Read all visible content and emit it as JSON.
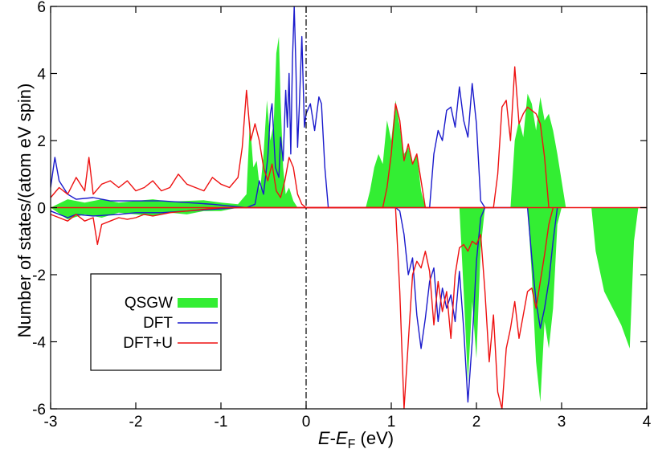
{
  "chart_data": {
    "type": "area",
    "title": "",
    "xlabel": {
      "main": "E",
      "sep": "-",
      "sym": "E",
      "sub": "F",
      "unit": " (eV)"
    },
    "ylabel": "Number of states/(atom eV spin)",
    "xlim": [
      -3,
      4
    ],
    "ylim": [
      -6,
      6
    ],
    "xticks": [
      -3,
      -2,
      -1,
      0,
      1,
      2,
      3,
      4
    ],
    "yticks": [
      -6,
      -4,
      -2,
      0,
      2,
      4,
      6
    ],
    "fermi_level": 0,
    "grid": false,
    "legend_position": "bottom-left",
    "series": [
      {
        "name": "QSGW",
        "style": "filled",
        "color": "#33ee33",
        "up": [
          [
            -3,
            0
          ],
          [
            -2.8,
            0.25
          ],
          [
            -2.6,
            0.15
          ],
          [
            -2.4,
            0.25
          ],
          [
            -2.2,
            0.15
          ],
          [
            -2,
            0.2
          ],
          [
            -1.8,
            0.25
          ],
          [
            -1.6,
            0.18
          ],
          [
            -1.4,
            0.2
          ],
          [
            -1.2,
            0.22
          ],
          [
            -1.0,
            0.15
          ],
          [
            -0.8,
            0.1
          ],
          [
            -0.7,
            0.4
          ],
          [
            -0.66,
            2.6
          ],
          [
            -0.62,
            1.2
          ],
          [
            -0.58,
            1.4
          ],
          [
            -0.54,
            0.5
          ],
          [
            -0.5,
            1.6
          ],
          [
            -0.46,
            3.2
          ],
          [
            -0.42,
            2.0
          ],
          [
            -0.38,
            2.5
          ],
          [
            -0.35,
            4.6
          ],
          [
            -0.32,
            5.1
          ],
          [
            -0.3,
            3.2
          ],
          [
            -0.27,
            1.2
          ],
          [
            -0.24,
            0.4
          ],
          [
            -0.2,
            0.6
          ],
          [
            -0.15,
            0.2
          ],
          [
            -0.1,
            0
          ],
          [
            0.7,
            0
          ],
          [
            0.75,
            0.5
          ],
          [
            0.8,
            1.2
          ],
          [
            0.85,
            1.6
          ],
          [
            0.9,
            1.3
          ],
          [
            0.95,
            2.6
          ],
          [
            1.0,
            2.0
          ],
          [
            1.05,
            3.2
          ],
          [
            1.1,
            2.4
          ],
          [
            1.15,
            1.6
          ],
          [
            1.2,
            1.8
          ],
          [
            1.25,
            1.3
          ],
          [
            1.3,
            1.6
          ],
          [
            1.35,
            0.5
          ],
          [
            1.4,
            0
          ],
          [
            2.4,
            0
          ],
          [
            2.45,
            2.0
          ],
          [
            2.5,
            2.6
          ],
          [
            2.55,
            2.1
          ],
          [
            2.6,
            3.4
          ],
          [
            2.65,
            3.1
          ],
          [
            2.7,
            2.3
          ],
          [
            2.75,
            3.3
          ],
          [
            2.8,
            2.6
          ],
          [
            2.85,
            2.8
          ],
          [
            2.9,
            2.3
          ],
          [
            2.95,
            1.6
          ],
          [
            3.0,
            0.8
          ],
          [
            3.05,
            0
          ]
        ],
        "down": [
          [
            -3,
            0
          ],
          [
            -2.8,
            -0.35
          ],
          [
            -2.6,
            -0.2
          ],
          [
            -2.4,
            -0.3
          ],
          [
            -2.2,
            -0.15
          ],
          [
            -2,
            -0.2
          ],
          [
            -1.8,
            -0.25
          ],
          [
            -1.6,
            -0.15
          ],
          [
            -1.4,
            -0.2
          ],
          [
            -1.2,
            -0.1
          ],
          [
            -1.0,
            -0.1
          ],
          [
            -0.8,
            0
          ],
          [
            1.8,
            0
          ],
          [
            1.85,
            -2.5
          ],
          [
            1.9,
            -5.2
          ],
          [
            1.95,
            -2.8
          ],
          [
            2.0,
            -4.5
          ],
          [
            2.05,
            -1.2
          ],
          [
            2.1,
            0
          ],
          [
            2.6,
            0
          ],
          [
            2.65,
            -2.0
          ],
          [
            2.7,
            -4.6
          ],
          [
            2.75,
            -5.8
          ],
          [
            2.8,
            -3.4
          ],
          [
            2.85,
            -4.2
          ],
          [
            2.9,
            -3.0
          ],
          [
            2.95,
            -0.5
          ],
          [
            3.0,
            0
          ],
          [
            3.35,
            0
          ],
          [
            3.4,
            -1.3
          ],
          [
            3.5,
            -2.5
          ],
          [
            3.6,
            -3.0
          ],
          [
            3.7,
            -3.5
          ],
          [
            3.8,
            -4.2
          ],
          [
            3.85,
            -1.0
          ],
          [
            3.9,
            0
          ]
        ]
      },
      {
        "name": "DFT",
        "style": "line",
        "color": "#1a1acc",
        "up": [
          [
            -3,
            0.6
          ],
          [
            -2.95,
            1.5
          ],
          [
            -2.9,
            0.8
          ],
          [
            -2.8,
            0.4
          ],
          [
            -2.7,
            0.25
          ],
          [
            -2.5,
            0.3
          ],
          [
            -2.3,
            0.2
          ],
          [
            -2,
            0.2
          ],
          [
            -1.7,
            0.2
          ],
          [
            -1.4,
            0.15
          ],
          [
            -1.1,
            0.1
          ],
          [
            -0.9,
            0.05
          ],
          [
            -0.7,
            0
          ],
          [
            -0.6,
            0.1
          ],
          [
            -0.55,
            0.8
          ],
          [
            -0.5,
            0.4
          ],
          [
            -0.45,
            1.5
          ],
          [
            -0.42,
            2.8
          ],
          [
            -0.4,
            3.1
          ],
          [
            -0.36,
            1.2
          ],
          [
            -0.32,
            0.9
          ],
          [
            -0.3,
            2.1
          ],
          [
            -0.27,
            1.4
          ],
          [
            -0.24,
            3.5
          ],
          [
            -0.22,
            2.4
          ],
          [
            -0.2,
            4.0
          ],
          [
            -0.18,
            1.6
          ],
          [
            -0.16,
            4.4
          ],
          [
            -0.14,
            6.0
          ],
          [
            -0.12,
            4.2
          ],
          [
            -0.1,
            1.8
          ],
          [
            -0.08,
            3.0
          ],
          [
            -0.05,
            5.1
          ],
          [
            -0.02,
            2.4
          ],
          [
            0,
            2.8
          ],
          [
            0.05,
            3.1
          ],
          [
            0.1,
            2.3
          ],
          [
            0.15,
            3.3
          ],
          [
            0.18,
            3.1
          ],
          [
            0.22,
            1.2
          ],
          [
            0.26,
            0
          ],
          [
            1.45,
            0
          ],
          [
            1.5,
            1.6
          ],
          [
            1.55,
            2.3
          ],
          [
            1.6,
            2.0
          ],
          [
            1.65,
            2.9
          ],
          [
            1.7,
            3.0
          ],
          [
            1.75,
            2.4
          ],
          [
            1.8,
            3.6
          ],
          [
            1.85,
            2.6
          ],
          [
            1.9,
            2.1
          ],
          [
            1.95,
            3.7
          ],
          [
            2.0,
            2.5
          ],
          [
            2.05,
            0.2
          ],
          [
            2.1,
            0
          ]
        ],
        "down": [
          [
            -3,
            -0.1
          ],
          [
            -2.9,
            -0.2
          ],
          [
            -2.8,
            -0.3
          ],
          [
            -2.7,
            -0.2
          ],
          [
            -2.5,
            -0.25
          ],
          [
            -2.2,
            -0.2
          ],
          [
            -2,
            -0.15
          ],
          [
            -1.7,
            -0.15
          ],
          [
            -1.4,
            -0.1
          ],
          [
            -1.1,
            -0.05
          ],
          [
            -0.8,
            0
          ],
          [
            1.05,
            0
          ],
          [
            1.1,
            -0.1
          ],
          [
            1.15,
            -0.8
          ],
          [
            1.2,
            -2.0
          ],
          [
            1.25,
            -1.5
          ],
          [
            1.3,
            -3.2
          ],
          [
            1.35,
            -4.2
          ],
          [
            1.4,
            -3.3
          ],
          [
            1.45,
            -2.2
          ],
          [
            1.5,
            -1.8
          ],
          [
            1.55,
            -3.4
          ],
          [
            1.6,
            -2.4
          ],
          [
            1.65,
            -3.0
          ],
          [
            1.7,
            -2.6
          ],
          [
            1.75,
            -3.4
          ],
          [
            1.8,
            -1.9
          ],
          [
            1.85,
            -3.6
          ],
          [
            1.9,
            -5.8
          ],
          [
            1.95,
            -4.0
          ],
          [
            2.0,
            -1.6
          ],
          [
            2.05,
            -0.3
          ],
          [
            2.1,
            0
          ],
          [
            2.6,
            0
          ],
          [
            2.65,
            -1.5
          ],
          [
            2.7,
            -2.8
          ],
          [
            2.75,
            -3.6
          ],
          [
            2.8,
            -3.0
          ],
          [
            2.85,
            -2.2
          ],
          [
            2.9,
            -1.0
          ],
          [
            2.95,
            0
          ]
        ]
      },
      {
        "name": "DFT+U",
        "style": "line",
        "color": "#ee1111",
        "up": [
          [
            -3,
            0.3
          ],
          [
            -2.9,
            0.6
          ],
          [
            -2.8,
            0.4
          ],
          [
            -2.7,
            0.9
          ],
          [
            -2.6,
            0.5
          ],
          [
            -2.55,
            1.5
          ],
          [
            -2.5,
            0.4
          ],
          [
            -2.4,
            0.7
          ],
          [
            -2.3,
            0.8
          ],
          [
            -2.2,
            0.6
          ],
          [
            -2.1,
            0.8
          ],
          [
            -2,
            0.5
          ],
          [
            -1.9,
            0.6
          ],
          [
            -1.8,
            0.8
          ],
          [
            -1.7,
            0.5
          ],
          [
            -1.6,
            0.6
          ],
          [
            -1.5,
            1.0
          ],
          [
            -1.4,
            0.7
          ],
          [
            -1.3,
            0.6
          ],
          [
            -1.2,
            0.5
          ],
          [
            -1.1,
            0.9
          ],
          [
            -1,
            0.7
          ],
          [
            -0.9,
            0.6
          ],
          [
            -0.8,
            0.9
          ],
          [
            -0.75,
            1.8
          ],
          [
            -0.7,
            3.5
          ],
          [
            -0.65,
            2.0
          ],
          [
            -0.6,
            2.5
          ],
          [
            -0.55,
            2.0
          ],
          [
            -0.5,
            1.2
          ],
          [
            -0.45,
            0.8
          ],
          [
            -0.4,
            1.3
          ],
          [
            -0.35,
            0.5
          ],
          [
            -0.3,
            0.3
          ],
          [
            -0.25,
            0.8
          ],
          [
            -0.2,
            1.5
          ],
          [
            -0.15,
            1.2
          ],
          [
            -0.1,
            0.4
          ],
          [
            -0.05,
            0.1
          ],
          [
            0,
            0
          ],
          [
            0.9,
            0
          ],
          [
            0.95,
            0.6
          ],
          [
            1.0,
            1.6
          ],
          [
            1.05,
            3.1
          ],
          [
            1.1,
            2.6
          ],
          [
            1.15,
            1.4
          ],
          [
            1.2,
            1.9
          ],
          [
            1.25,
            1.3
          ],
          [
            1.3,
            1.6
          ],
          [
            1.35,
            0.8
          ],
          [
            1.4,
            0
          ],
          [
            2.2,
            0
          ],
          [
            2.25,
            1.0
          ],
          [
            2.3,
            3.0
          ],
          [
            2.35,
            3.2
          ],
          [
            2.4,
            2.0
          ],
          [
            2.45,
            4.2
          ],
          [
            2.5,
            2.5
          ],
          [
            2.55,
            2.8
          ],
          [
            2.6,
            3.0
          ],
          [
            2.65,
            2.9
          ],
          [
            2.7,
            2.8
          ],
          [
            2.75,
            2.5
          ],
          [
            2.8,
            1.5
          ],
          [
            2.85,
            0
          ]
        ],
        "down": [
          [
            -3,
            -0.2
          ],
          [
            -2.9,
            -0.3
          ],
          [
            -2.8,
            -0.4
          ],
          [
            -2.7,
            -0.2
          ],
          [
            -2.6,
            -0.4
          ],
          [
            -2.5,
            -0.3
          ],
          [
            -2.45,
            -1.1
          ],
          [
            -2.4,
            -0.5
          ],
          [
            -2.3,
            -0.4
          ],
          [
            -2.2,
            -0.3
          ],
          [
            -2.1,
            -0.35
          ],
          [
            -2,
            -0.3
          ],
          [
            -1.9,
            -0.2
          ],
          [
            -1.8,
            -0.25
          ],
          [
            -1.6,
            -0.15
          ],
          [
            -1.4,
            -0.1
          ],
          [
            -1.2,
            -0.05
          ],
          [
            -1.0,
            0
          ],
          [
            1.05,
            0
          ],
          [
            1.1,
            -2.5
          ],
          [
            1.15,
            -6.0
          ],
          [
            1.2,
            -4.0
          ],
          [
            1.25,
            -2.0
          ],
          [
            1.3,
            -1.6
          ],
          [
            1.35,
            -1.8
          ],
          [
            1.4,
            -1.3
          ],
          [
            1.45,
            -1.9
          ],
          [
            1.5,
            -3.5
          ],
          [
            1.55,
            -2.2
          ],
          [
            1.6,
            -3.1
          ],
          [
            1.65,
            -2.5
          ],
          [
            1.7,
            -3.9
          ],
          [
            1.75,
            -2.0
          ],
          [
            1.8,
            -1.2
          ],
          [
            1.85,
            -1.1
          ],
          [
            1.9,
            -1.3
          ],
          [
            1.95,
            -1.0
          ],
          [
            2.0,
            -1.1
          ],
          [
            2.05,
            -0.8
          ],
          [
            2.1,
            -2.5
          ],
          [
            2.15,
            -4.6
          ],
          [
            2.2,
            -3.2
          ],
          [
            2.25,
            -5.5
          ],
          [
            2.3,
            -6.0
          ],
          [
            2.35,
            -4.2
          ],
          [
            2.4,
            -3.6
          ],
          [
            2.45,
            -2.8
          ],
          [
            2.5,
            -3.9
          ],
          [
            2.55,
            -3.2
          ],
          [
            2.6,
            -2.5
          ],
          [
            2.65,
            -2.4
          ],
          [
            2.7,
            -3.0
          ],
          [
            2.75,
            -2.2
          ],
          [
            2.8,
            -1.4
          ],
          [
            2.85,
            -0.5
          ],
          [
            2.9,
            0
          ]
        ]
      }
    ]
  }
}
